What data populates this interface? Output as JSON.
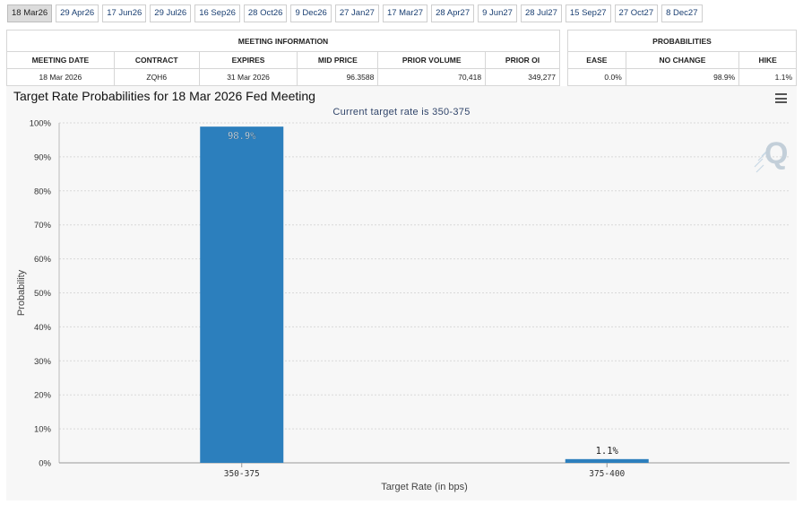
{
  "tabs": [
    "18 Mar26",
    "29 Apr26",
    "17 Jun26",
    "29 Jul26",
    "16 Sep26",
    "28 Oct26",
    "9 Dec26",
    "27 Jan27",
    "17 Mar27",
    "28 Apr27",
    "9 Jun27",
    "28 Jul27",
    "15 Sep27",
    "27 Oct27",
    "8 Dec27"
  ],
  "active_tab": "18 Mar26",
  "meeting_info": {
    "group_label": "MEETING INFORMATION",
    "headers": [
      "MEETING DATE",
      "CONTRACT",
      "EXPIRES",
      "MID PRICE",
      "PRIOR VOLUME",
      "PRIOR OI"
    ],
    "row": {
      "meeting_date": "18 Mar 2026",
      "contract": "ZQH6",
      "expires": "31 Mar 2026",
      "mid_price": "96.3588",
      "prior_volume": "70,418",
      "prior_oi": "349,277"
    }
  },
  "probabilities": {
    "group_label": "PROBABILITIES",
    "headers": [
      "EASE",
      "NO CHANGE",
      "HIKE"
    ],
    "row": {
      "ease": "0.0%",
      "no_change": "98.9%",
      "hike": "1.1%"
    }
  },
  "chart": {
    "menu_icon": "hamburger-menu-icon",
    "watermark_icon": "q-logo-icon",
    "bar_color": "#2c7fbd"
  },
  "chart_data": {
    "type": "bar",
    "title": "Target Rate Probabilities for 18 Mar 2026 Fed Meeting",
    "subtitle": "Current target rate is 350-375",
    "xlabel": "Target Rate (in bps)",
    "ylabel": "Probability",
    "categories": [
      "350-375",
      "375-400"
    ],
    "values": [
      98.9,
      1.1
    ],
    "data_labels": [
      "98.9%",
      "1.1%"
    ],
    "ylim": [
      0,
      100
    ],
    "yticks": [
      "0%",
      "10%",
      "20%",
      "30%",
      "40%",
      "50%",
      "60%",
      "70%",
      "80%",
      "90%",
      "100%"
    ],
    "grid": true
  }
}
